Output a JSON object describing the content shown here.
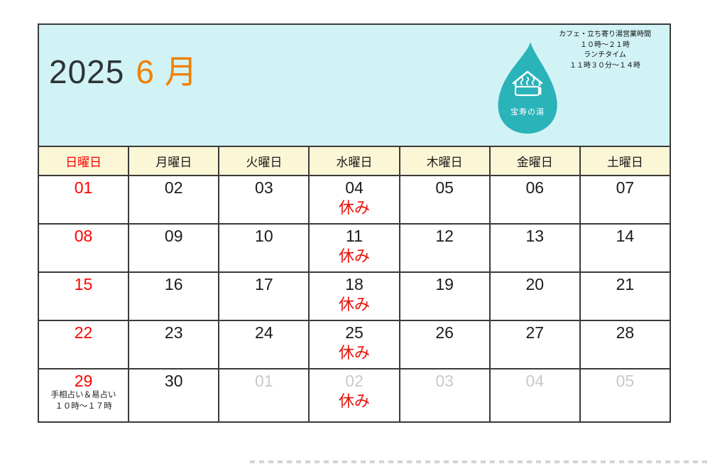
{
  "title": {
    "year": "2025",
    "month": "6 月"
  },
  "hours_note": {
    "lines": [
      "カフェ・立ち寄り湯営業時間",
      "１０時～２１時",
      "ランチタイム",
      "１１時３０分～１４時"
    ]
  },
  "logo": {
    "name": "宝寿の湯",
    "icon": "onsen-house-icon"
  },
  "closed_label": "休み",
  "weekdays": [
    {
      "label": "日曜日",
      "type": "sunday"
    },
    {
      "label": "月曜日",
      "type": "weekday"
    },
    {
      "label": "火曜日",
      "type": "weekday"
    },
    {
      "label": "水曜日",
      "type": "weekday"
    },
    {
      "label": "木曜日",
      "type": "weekday"
    },
    {
      "label": "金曜日",
      "type": "weekday"
    },
    {
      "label": "土曜日",
      "type": "weekday"
    }
  ],
  "weeks": [
    [
      {
        "day": "01",
        "color": "red"
      },
      {
        "day": "02",
        "color": "black"
      },
      {
        "day": "03",
        "color": "black"
      },
      {
        "day": "04",
        "color": "black",
        "closed": true
      },
      {
        "day": "05",
        "color": "black"
      },
      {
        "day": "06",
        "color": "black"
      },
      {
        "day": "07",
        "color": "black"
      }
    ],
    [
      {
        "day": "08",
        "color": "red"
      },
      {
        "day": "09",
        "color": "black"
      },
      {
        "day": "10",
        "color": "black"
      },
      {
        "day": "11",
        "color": "black",
        "closed": true
      },
      {
        "day": "12",
        "color": "black"
      },
      {
        "day": "13",
        "color": "black"
      },
      {
        "day": "14",
        "color": "black"
      }
    ],
    [
      {
        "day": "15",
        "color": "red"
      },
      {
        "day": "16",
        "color": "black"
      },
      {
        "day": "17",
        "color": "black"
      },
      {
        "day": "18",
        "color": "black",
        "closed": true
      },
      {
        "day": "19",
        "color": "black"
      },
      {
        "day": "20",
        "color": "black"
      },
      {
        "day": "21",
        "color": "black"
      }
    ],
    [
      {
        "day": "22",
        "color": "red"
      },
      {
        "day": "23",
        "color": "black"
      },
      {
        "day": "24",
        "color": "black"
      },
      {
        "day": "25",
        "color": "black",
        "closed": true
      },
      {
        "day": "26",
        "color": "black"
      },
      {
        "day": "27",
        "color": "black"
      },
      {
        "day": "28",
        "color": "black"
      }
    ],
    [
      {
        "day": "29",
        "color": "red",
        "notes": [
          "手相占い＆易占い",
          "１０時～１７時"
        ]
      },
      {
        "day": "30",
        "color": "black"
      },
      {
        "day": "01",
        "color": "gray"
      },
      {
        "day": "02",
        "color": "gray",
        "closed": true
      },
      {
        "day": "03",
        "color": "gray"
      },
      {
        "day": "04",
        "color": "gray"
      },
      {
        "day": "05",
        "color": "gray"
      }
    ]
  ],
  "colors": {
    "header_bg": "#d2f3f6",
    "weekday_bg": "#fbf6d6",
    "accent_orange": "#f18000",
    "sunday_red": "#ff0000",
    "closed_red": "#e8120b",
    "logo_teal": "#2bb3ba",
    "gray_date": "#c9c9c9",
    "black_date": "#1c1c1c",
    "border": "#3a3a3a"
  }
}
